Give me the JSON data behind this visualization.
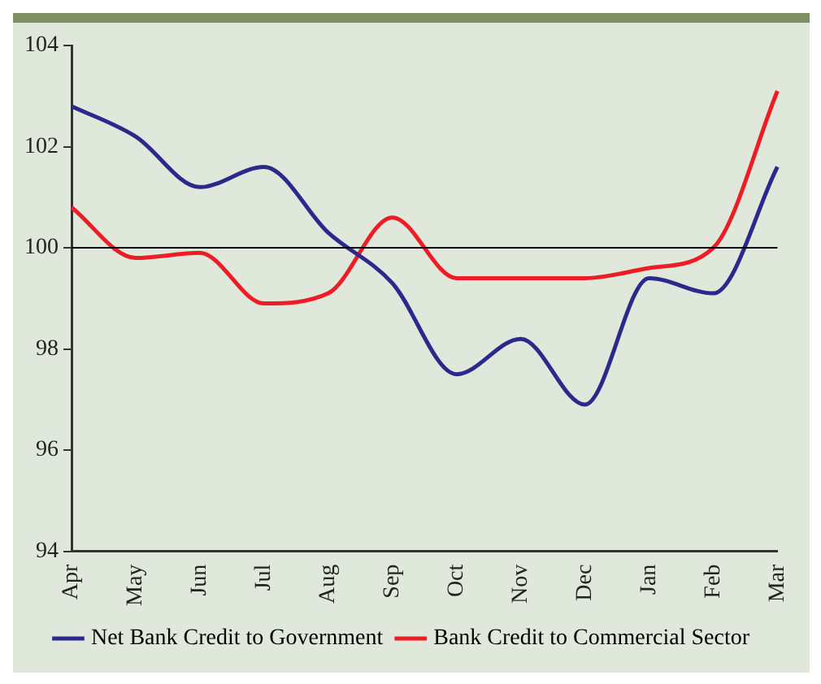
{
  "chart_data": {
    "type": "line",
    "categories": [
      "Apr",
      "May",
      "Jun",
      "Jul",
      "Aug",
      "Sep",
      "Oct",
      "Nov",
      "Dec",
      "Jan",
      "Feb",
      "Mar"
    ],
    "series": [
      {
        "name": "Net Bank Credit to Government",
        "color": "#2b2a8c",
        "values": [
          102.8,
          102.2,
          101.2,
          101.6,
          100.3,
          99.3,
          97.5,
          98.2,
          96.9,
          99.4,
          99.1,
          101.6
        ]
      },
      {
        "name": "Bank Credit to Commercial Sector",
        "color": "#ee1c24",
        "values": [
          100.8,
          99.8,
          99.9,
          98.9,
          99.1,
          100.6,
          99.4,
          99.4,
          99.4,
          99.6,
          100.0,
          103.1
        ]
      }
    ],
    "ylim": [
      94,
      104
    ],
    "yticks": [
      94,
      96,
      98,
      100,
      102,
      104
    ],
    "ref_lines": [
      {
        "axis": "y",
        "value": 100,
        "color": "#000000"
      }
    ],
    "grid": false,
    "legend": "bottom",
    "marker": "none",
    "line_style": "solid"
  }
}
